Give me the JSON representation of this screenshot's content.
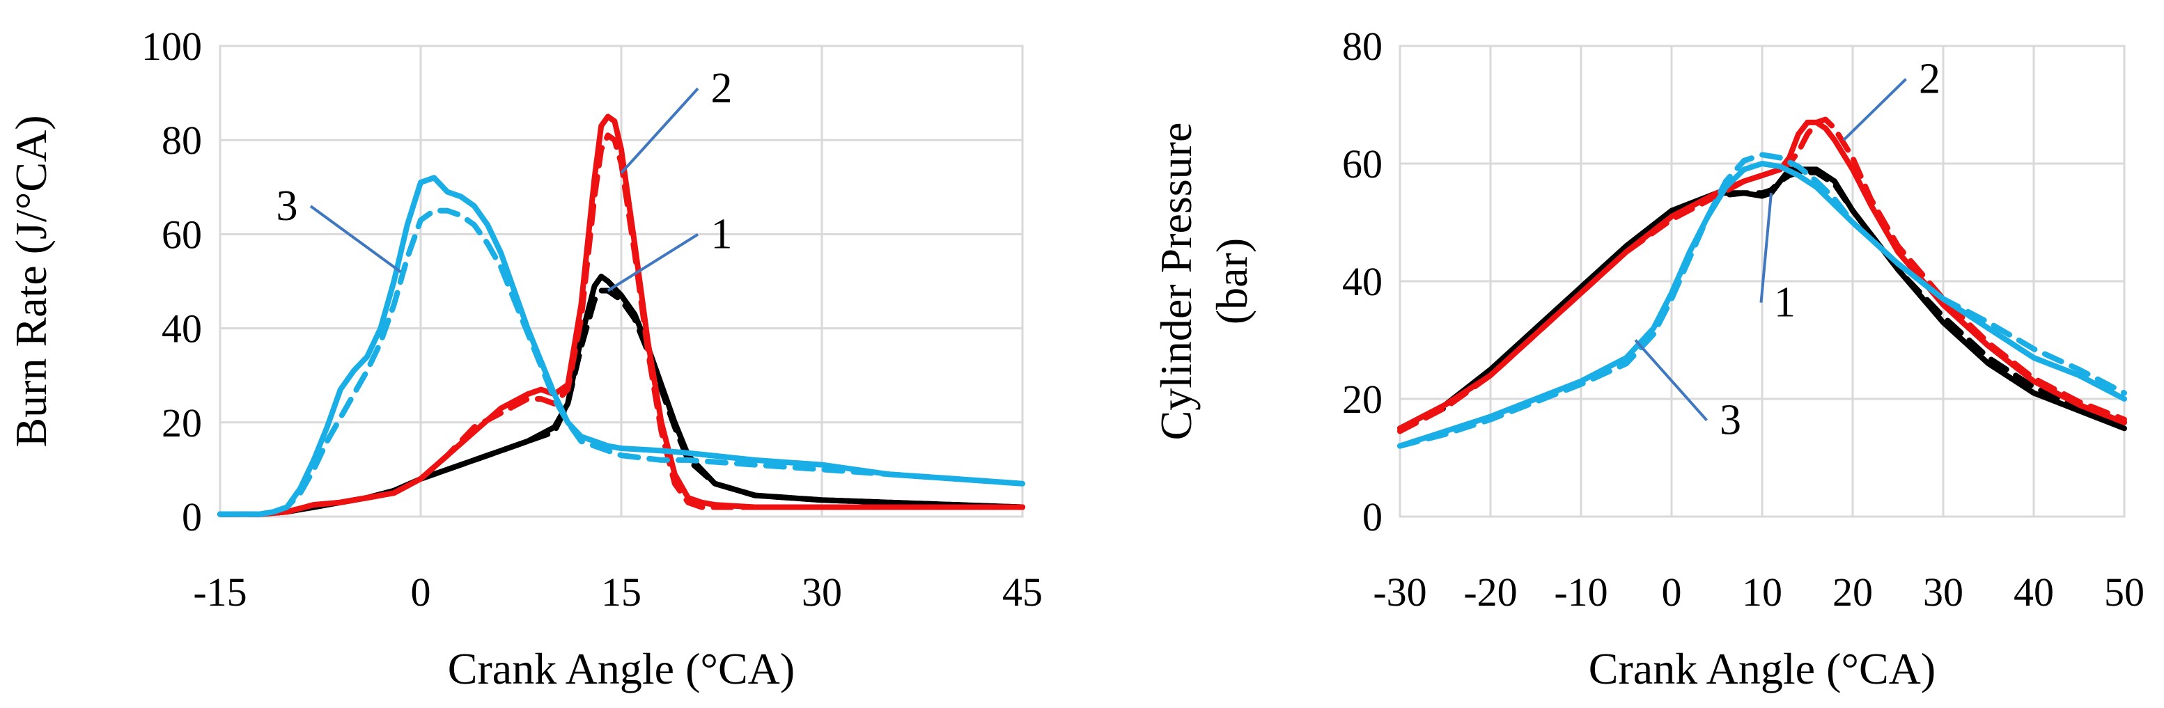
{
  "colors": {
    "case1": "#000000",
    "case2": "#ee1111",
    "case3": "#19aee5",
    "leader": "#3f78c0",
    "grid": "#d9d9d9"
  },
  "chart_data": [
    {
      "type": "line",
      "xlabel": "Crank Angle (°CA)",
      "ylabel": "Burn Rate (J/°CA)",
      "xlim": [
        -15,
        45
      ],
      "ylim": [
        0,
        100
      ],
      "xticks": [
        "-15",
        "0",
        "15",
        "30",
        "45"
      ],
      "xtick_values": [
        -15,
        0,
        15,
        30,
        45
      ],
      "yticks": [
        "0",
        "20",
        "40",
        "60",
        "80",
        "100"
      ],
      "ytick_values": [
        0,
        20,
        40,
        60,
        80,
        100
      ],
      "grid": true,
      "series": [
        {
          "label": "1",
          "color_key": "case1",
          "dashed": false,
          "x": [
            -15,
            -12,
            -10,
            -8,
            -6,
            -4,
            -2,
            0,
            2,
            4,
            6,
            8,
            10,
            11,
            12,
            13,
            13.5,
            14,
            15,
            16,
            17,
            18,
            19,
            20,
            22,
            25,
            30,
            35,
            40,
            45
          ],
          "y": [
            0.5,
            0.5,
            1,
            2,
            3,
            4,
            5.5,
            8,
            10,
            12,
            14,
            16,
            19,
            24,
            38,
            49,
            51,
            50,
            47,
            43,
            36,
            28,
            20,
            13,
            7,
            4.5,
            3.5,
            3,
            2.5,
            2
          ]
        },
        {
          "label": "1",
          "color_key": "case1",
          "dashed": true,
          "x": [
            -15,
            -12,
            -10,
            -8,
            -6,
            -4,
            -2,
            0,
            2,
            4,
            6,
            8,
            10,
            11,
            12,
            13,
            13.5,
            14,
            15,
            16,
            17,
            18,
            19,
            20,
            22,
            25,
            30,
            35,
            40,
            45
          ],
          "y": [
            0.5,
            0.5,
            1,
            2,
            3,
            4,
            5.5,
            8,
            10,
            12,
            14,
            16,
            18,
            24,
            36,
            46,
            48,
            48,
            46,
            42,
            35,
            27,
            19,
            12,
            7,
            4.5,
            3.5,
            3,
            2.5,
            2
          ]
        },
        {
          "label": "2",
          "color_key": "case2",
          "dashed": false,
          "x": [
            -15,
            -12,
            -10,
            -8,
            -6,
            -4,
            -2,
            0,
            2,
            4,
            6,
            8,
            9,
            10,
            11,
            12,
            13,
            13.5,
            14,
            14.5,
            15,
            16,
            17,
            18,
            19,
            20,
            21,
            22,
            25,
            30,
            45
          ],
          "y": [
            0.5,
            0.5,
            1,
            2.5,
            3,
            4,
            5,
            8,
            13,
            18,
            23,
            26,
            27,
            26,
            28,
            45,
            72,
            83,
            85,
            84,
            78,
            58,
            37,
            20,
            9,
            4,
            3,
            2.5,
            2,
            2,
            2
          ]
        },
        {
          "label": "2",
          "color_key": "case2",
          "dashed": true,
          "x": [
            -15,
            -12,
            -10,
            -8,
            -6,
            -4,
            -2,
            0,
            2,
            4,
            6,
            8,
            9,
            10,
            11,
            12,
            13,
            13.5,
            14,
            14.5,
            15,
            16,
            17,
            18,
            19,
            20,
            21,
            22,
            25,
            30,
            45
          ],
          "y": [
            0.5,
            0.5,
            1,
            2.5,
            3,
            4,
            5,
            8,
            13,
            19,
            22,
            25,
            25,
            24,
            27,
            42,
            68,
            78,
            81,
            80,
            75,
            56,
            35,
            18,
            7,
            3,
            2,
            2,
            2,
            2,
            2
          ]
        },
        {
          "label": "3",
          "color_key": "case3",
          "dashed": false,
          "x": [
            -15,
            -12,
            -11,
            -10,
            -9,
            -8,
            -7,
            -6,
            -5,
            -4,
            -3,
            -2,
            -1,
            0,
            1,
            2,
            3,
            4,
            5,
            6,
            7,
            8,
            9,
            10,
            11,
            12,
            13,
            14,
            15,
            18,
            20,
            25,
            30,
            35,
            40,
            45
          ],
          "y": [
            0.5,
            0.5,
            1,
            2,
            6,
            12,
            19,
            27,
            31,
            34,
            40,
            50,
            62,
            71,
            72,
            69,
            68,
            66,
            62,
            56,
            48,
            40,
            33,
            26,
            20,
            17,
            16,
            15,
            14.5,
            14,
            13.5,
            12,
            11,
            9,
            8,
            7
          ]
        },
        {
          "label": "3",
          "color_key": "case3",
          "dashed": true,
          "x": [
            -15,
            -12,
            -11,
            -10,
            -9,
            -8,
            -7,
            -6,
            -5,
            -4,
            -3,
            -2,
            -1,
            0,
            1,
            2,
            3,
            4,
            5,
            6,
            7,
            8,
            9,
            10,
            11,
            12,
            13,
            14,
            15,
            18,
            20,
            25,
            30,
            35,
            40,
            45
          ],
          "y": [
            0.5,
            0.5,
            1,
            2,
            5,
            10,
            16,
            21,
            26,
            31,
            37,
            45,
            55,
            63,
            65,
            65,
            64,
            62,
            58,
            53,
            46,
            39,
            32,
            25,
            20,
            16,
            15,
            14,
            13,
            12,
            12,
            11,
            10,
            9,
            8,
            7
          ]
        }
      ],
      "annotations": [
        {
          "text": "1",
          "x": 22.5,
          "y": 57,
          "points_to": [
            14,
            48
          ]
        },
        {
          "text": "2",
          "x": 22.5,
          "y": 88,
          "points_to": [
            15,
            73
          ]
        },
        {
          "text": "3",
          "x": -10,
          "y": 63,
          "points_to": [
            -1.5,
            52
          ]
        }
      ]
    },
    {
      "type": "line",
      "xlabel": "Crank Angle (°CA)",
      "ylabel": "Cylinder Pressure (bar)",
      "ylabel_lines": [
        "Cylinder Pressure",
        "(bar)"
      ],
      "xlim": [
        -30,
        50
      ],
      "ylim": [
        0,
        80
      ],
      "xticks": [
        "-30",
        "-20",
        "-10",
        "0",
        "10",
        "20",
        "30",
        "40",
        "50"
      ],
      "xtick_values": [
        -30,
        -20,
        -10,
        0,
        10,
        20,
        30,
        40,
        50
      ],
      "yticks": [
        "0",
        "20",
        "40",
        "60",
        "80"
      ],
      "ytick_values": [
        0,
        20,
        40,
        60,
        80
      ],
      "grid": true,
      "series": [
        {
          "label": "1",
          "color_key": "case1",
          "dashed": false,
          "x": [
            -30,
            -25,
            -20,
            -15,
            -10,
            -5,
            0,
            5,
            8,
            10,
            11,
            12,
            13,
            14,
            16,
            18,
            20,
            25,
            30,
            35,
            40,
            45,
            50
          ],
          "y": [
            15,
            19,
            25,
            32,
            39,
            46,
            52,
            55,
            55,
            54.5,
            55,
            57,
            59,
            59,
            59,
            57,
            52,
            42,
            33,
            26,
            21,
            18,
            15
          ]
        },
        {
          "label": "1",
          "color_key": "case1",
          "dashed": true,
          "x": [
            -30,
            -25,
            -20,
            -15,
            -10,
            -5,
            0,
            5,
            8,
            10,
            11,
            12,
            13,
            14,
            16,
            18,
            20,
            25,
            30,
            35,
            40,
            45,
            50
          ],
          "y": [
            15,
            18.5,
            24.5,
            31.5,
            38.5,
            45.5,
            51.5,
            54.5,
            55,
            55,
            55.5,
            57,
            58,
            58.5,
            58.5,
            56.5,
            52,
            42,
            34,
            27,
            22,
            18.5,
            16
          ]
        },
        {
          "label": "2",
          "color_key": "case2",
          "dashed": false,
          "x": [
            -30,
            -25,
            -20,
            -15,
            -10,
            -5,
            0,
            5,
            8,
            10,
            12,
            13,
            14,
            15,
            16,
            17,
            18,
            20,
            22,
            25,
            30,
            35,
            40,
            45,
            50
          ],
          "y": [
            15,
            19,
            24,
            31,
            38,
            45,
            51,
            55,
            57,
            58,
            59,
            61,
            65,
            67,
            67,
            66,
            64,
            59,
            53,
            45,
            36,
            29,
            23,
            19,
            16
          ]
        },
        {
          "label": "2",
          "color_key": "case2",
          "dashed": true,
          "x": [
            -30,
            -25,
            -20,
            -15,
            -10,
            -5,
            0,
            5,
            8,
            10,
            12,
            13,
            14,
            15,
            16,
            17,
            18,
            20,
            22,
            25,
            30,
            35,
            40,
            45,
            50
          ],
          "y": [
            14.5,
            18.5,
            24,
            31,
            38,
            45,
            50.5,
            54.5,
            57,
            58,
            59,
            60,
            62,
            65,
            67,
            67.5,
            66,
            61,
            54,
            46,
            37,
            29.5,
            23.5,
            19.5,
            16.5
          ]
        },
        {
          "label": "3",
          "color_key": "case3",
          "dashed": false,
          "x": [
            -30,
            -25,
            -20,
            -15,
            -10,
            -5,
            -2,
            0,
            2,
            4,
            6,
            8,
            10,
            12,
            14,
            16,
            18,
            20,
            25,
            30,
            35,
            40,
            45,
            50
          ],
          "y": [
            12,
            14.5,
            17,
            20,
            23,
            27,
            32,
            38,
            45,
            51,
            56,
            59,
            60,
            59.5,
            58,
            56,
            53,
            50,
            43,
            37,
            32,
            27,
            24,
            20
          ]
        },
        {
          "label": "3",
          "color_key": "case3",
          "dashed": true,
          "x": [
            -30,
            -25,
            -20,
            -15,
            -10,
            -5,
            -2,
            0,
            2,
            4,
            6,
            8,
            10,
            12,
            14,
            16,
            18,
            20,
            25,
            30,
            35,
            40,
            45,
            50
          ],
          "y": [
            12,
            14,
            16.5,
            19.5,
            22.5,
            26,
            31,
            37,
            44,
            51,
            57,
            60.5,
            61.5,
            61,
            59.5,
            57,
            54,
            50,
            43,
            37,
            33,
            28.5,
            25,
            21
          ]
        }
      ],
      "annotations": [
        {
          "text": "1",
          "x": 12.5,
          "y": 34,
          "points_to": [
            11,
            55
          ]
        },
        {
          "text": "2",
          "x": 28.5,
          "y": 72,
          "points_to": [
            19,
            64
          ]
        },
        {
          "text": "3",
          "x": 6.5,
          "y": 14,
          "points_to": [
            -4,
            30
          ]
        }
      ]
    }
  ]
}
